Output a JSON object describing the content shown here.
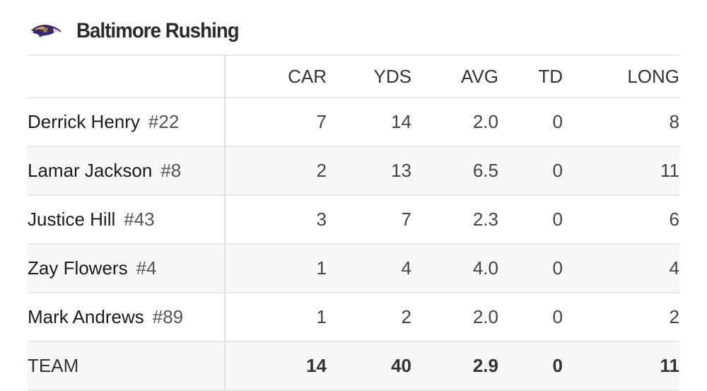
{
  "header": {
    "title": "Baltimore Rushing",
    "logo_icon": "ravens-logo"
  },
  "columns": [
    "CAR",
    "YDS",
    "AVG",
    "TD",
    "LONG"
  ],
  "rows": [
    {
      "name": "Derrick Henry",
      "number": "#22",
      "stats": [
        "7",
        "14",
        "2.0",
        "0",
        "8"
      ]
    },
    {
      "name": "Lamar Jackson",
      "number": "#8",
      "stats": [
        "2",
        "13",
        "6.5",
        "0",
        "11"
      ]
    },
    {
      "name": "Justice Hill",
      "number": "#43",
      "stats": [
        "3",
        "7",
        "2.3",
        "0",
        "6"
      ]
    },
    {
      "name": "Zay Flowers",
      "number": "#4",
      "stats": [
        "1",
        "4",
        "4.0",
        "0",
        "4"
      ]
    },
    {
      "name": "Mark Andrews",
      "number": "#89",
      "stats": [
        "1",
        "2",
        "2.0",
        "0",
        "2"
      ]
    }
  ],
  "team": {
    "label": "TEAM",
    "stats": [
      "14",
      "40",
      "2.9",
      "0",
      "11"
    ]
  }
}
